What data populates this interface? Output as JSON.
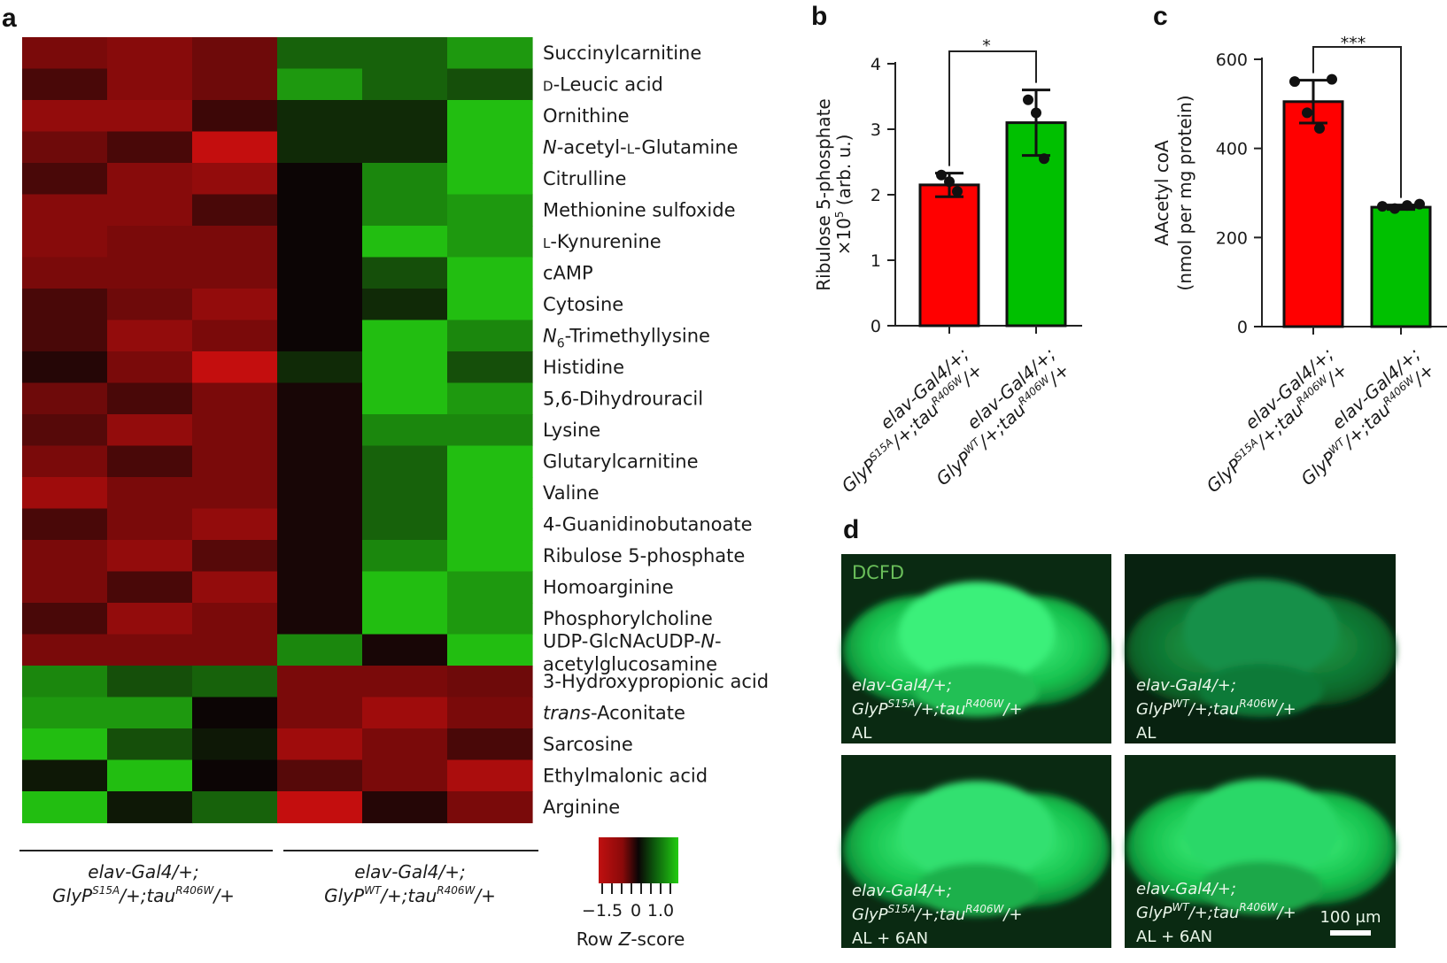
{
  "panel_labels": {
    "a": "a",
    "b": "b",
    "c": "c",
    "d": "d"
  },
  "colors": {
    "red": "#ff0000",
    "green": "#00c000",
    "heat_high": "#22bb11",
    "heat_low": "#c01010",
    "heat_mid": "#0c0505"
  },
  "heatmap_genotypes": {
    "left": {
      "line1": "elav-Gal4/+;",
      "line2_a": "GlyP",
      "line2_sup1": "S15A",
      "line2_b": "/+;tau",
      "line2_sup2": "R406W",
      "line2_c": "/+"
    },
    "right": {
      "line1": "elav-Gal4/+;",
      "line2_a": "GlyP",
      "line2_sup1": "WT",
      "line2_b": "/+;tau",
      "line2_sup2": "R406W",
      "line2_c": "/+"
    }
  },
  "colorscale": {
    "ticks": [
      "−1.5",
      "0",
      "1.0"
    ],
    "label_a": "Row ",
    "label_b": "Z",
    "label_c": "-score"
  },
  "bar_genotypes": {
    "s15a": {
      "l1": "elav-Gal4/+;",
      "a": "GlyP",
      "s1": "S15A",
      "b": "/+;tau",
      "s2": "R406W",
      "c": "/+"
    },
    "wt": {
      "l1": "elav-Gal4/+;",
      "a": "GlyP",
      "s1": "WT",
      "b": "/+;tau",
      "s2": "R406W",
      "c": "/+"
    }
  },
  "micro": {
    "dcfd": "DCFD",
    "panels": [
      {
        "l1": "elav-Gal4/+;",
        "a": "GlyP",
        "s1": "S15A",
        "b": "/+;tau",
        "s2": "R406W",
        "c": "/+",
        "cond": "AL"
      },
      {
        "l1": "elav-Gal4/+;",
        "a": "GlyP",
        "s1": "WT",
        "b": "/+;tau",
        "s2": "R406W",
        "c": "/+",
        "cond": "AL"
      },
      {
        "l1": "elav-Gal4/+;",
        "a": "GlyP",
        "s1": "S15A",
        "b": "/+;tau",
        "s2": "R406W",
        "c": "/+",
        "cond": "AL + 6AN"
      },
      {
        "l1": "elav-Gal4/+;",
        "a": "GlyP",
        "s1": "WT",
        "b": "/+;tau",
        "s2": "R406W",
        "c": "/+",
        "cond": "AL + 6AN"
      }
    ],
    "scale_bar": "100 μm"
  },
  "chart_data": [
    {
      "type": "heatmap",
      "rows": [
        {
          "pre": "Succinylcarnitine"
        },
        {
          "sc": "d",
          "post": "-Leucic acid"
        },
        {
          "pre": "Ornithine"
        },
        {
          "it": "N",
          "pre": "-acetyl-",
          "sc": "l",
          "post": "-Glutamine"
        },
        {
          "pre": "Citrulline"
        },
        {
          "pre": "Methionine sulfoxide"
        },
        {
          "sc": "l",
          "post": "-Kynurenine"
        },
        {
          "pre": "cAMP"
        },
        {
          "pre": "Cytosine"
        },
        {
          "it": "N",
          "sub": "6",
          "post": "-Trimethyllysine"
        },
        {
          "pre": "Histidine"
        },
        {
          "pre": "5,6-Dihydrouracil"
        },
        {
          "pre": "Lysine"
        },
        {
          "pre": "Glutarylcarnitine"
        },
        {
          "pre": "Valine"
        },
        {
          "pre": "4-Guanidinobutanoate"
        },
        {
          "pre": "Ribulose 5-phosphate"
        },
        {
          "pre": "Homoarginine"
        },
        {
          "pre": "Phosphorylcholine"
        },
        {
          "pre": "UDP-GlcNAcUDP-",
          "it2": "N",
          "post": "-",
          "line2": "acetylglucosamine"
        },
        {
          "pre": "3-Hydroxypropionic acid"
        },
        {
          "it": "trans",
          "post": "-Aconitate"
        },
        {
          "pre": "Sarcosine"
        },
        {
          "pre": "Ethylmalonic acid"
        },
        {
          "pre": "Arginine"
        }
      ],
      "values": [
        [
          -0.9,
          -1.0,
          -0.8,
          0.5,
          0.5,
          0.8
        ],
        [
          -0.5,
          -1.0,
          -0.8,
          0.8,
          0.5,
          0.4
        ],
        [
          -1.1,
          -1.1,
          -0.4,
          0.2,
          0.2,
          1.0
        ],
        [
          -0.8,
          -0.5,
          -1.5,
          0.2,
          0.2,
          1.0
        ],
        [
          -0.5,
          -1.0,
          -1.1,
          0.0,
          0.7,
          1.0
        ],
        [
          -1.0,
          -1.0,
          -0.5,
          0.0,
          0.7,
          0.8
        ],
        [
          -1.0,
          -0.9,
          -0.9,
          0.0,
          1.0,
          0.8
        ],
        [
          -0.9,
          -0.9,
          -0.9,
          0.0,
          0.4,
          1.0
        ],
        [
          -0.5,
          -0.8,
          -1.1,
          0.0,
          0.2,
          1.0
        ],
        [
          -0.5,
          -1.1,
          -0.9,
          0.0,
          1.0,
          0.7
        ],
        [
          -0.2,
          -0.9,
          -1.5,
          0.2,
          1.0,
          0.4
        ],
        [
          -0.8,
          -0.5,
          -0.9,
          -0.1,
          1.0,
          0.8
        ],
        [
          -0.6,
          -1.1,
          -0.9,
          -0.1,
          0.7,
          0.7
        ],
        [
          -0.9,
          -0.5,
          -0.9,
          -0.1,
          0.5,
          1.0
        ],
        [
          -1.2,
          -0.9,
          -0.9,
          -0.1,
          0.5,
          1.0
        ],
        [
          -0.5,
          -0.9,
          -1.1,
          -0.1,
          0.5,
          1.0
        ],
        [
          -0.9,
          -1.1,
          -0.6,
          -0.1,
          0.7,
          1.0
        ],
        [
          -0.9,
          -0.5,
          -1.1,
          -0.1,
          1.0,
          0.8
        ],
        [
          -0.5,
          -1.1,
          -0.9,
          -0.1,
          1.0,
          0.8
        ],
        [
          -0.9,
          -0.9,
          -0.9,
          0.7,
          -0.1,
          1.0
        ],
        [
          0.7,
          0.4,
          0.5,
          -0.9,
          -0.9,
          -0.8
        ],
        [
          0.8,
          0.8,
          0.0,
          -0.9,
          -1.2,
          -0.9
        ],
        [
          1.0,
          0.4,
          0.1,
          -1.2,
          -0.9,
          -0.5
        ],
        [
          0.1,
          1.0,
          0.0,
          -0.6,
          -0.9,
          -1.3
        ],
        [
          1.0,
          0.1,
          0.5,
          -1.5,
          -0.2,
          -0.9
        ]
      ],
      "scale_range": [
        -1.5,
        1.0
      ]
    },
    {
      "type": "bar",
      "ylabel": "Ribulose 5-phosphate",
      "ylabel2_a": "×10",
      "ylabel2_sup": "5",
      "ylabel2_b": " (arb. u.)",
      "ylim": [
        0,
        4
      ],
      "yticks": [
        "0",
        "1",
        "2",
        "3",
        "4"
      ],
      "values": [
        2.15,
        3.1
      ],
      "errors": [
        0.18,
        0.5
      ],
      "points": [
        [
          2.3,
          2.2,
          2.05
        ],
        [
          3.45,
          3.25,
          2.55
        ]
      ],
      "significance": "*"
    },
    {
      "type": "bar",
      "ylabel": "AAcetyl coA",
      "ylabel2": "(nmol per mg protein)",
      "ylim": [
        0,
        600
      ],
      "yticks": [
        "0",
        "200",
        "400",
        "600"
      ],
      "values": [
        505,
        268
      ],
      "errors": [
        48,
        5
      ],
      "points": [
        [
          550,
          480,
          445,
          555
        ],
        [
          270,
          265,
          272,
          275
        ]
      ],
      "significance": "***"
    }
  ]
}
